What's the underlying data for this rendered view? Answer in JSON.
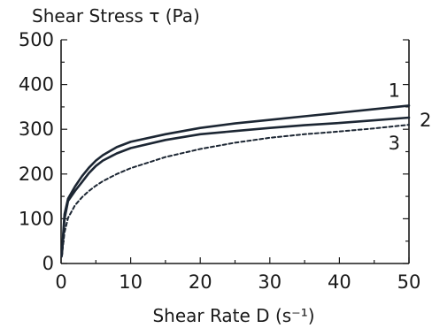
{
  "chart_data": {
    "type": "line",
    "ylabel": "Shear Stress τ (Pa)",
    "xlabel": "Shear Rate D (s⁻¹)",
    "xlim": [
      0,
      50
    ],
    "ylim": [
      0,
      500
    ],
    "xticks": [
      "0",
      "10",
      "20",
      "30",
      "40",
      "50"
    ],
    "yticks": [
      "0",
      "100",
      "200",
      "300",
      "400",
      "500"
    ],
    "grid": false,
    "series": [
      {
        "name": "1",
        "style": "solid",
        "color": "#1c2633",
        "x": [
          0.1,
          0.5,
          1,
          2,
          3,
          4,
          5,
          6,
          8,
          10,
          15,
          20,
          25,
          30,
          35,
          40,
          45,
          50
        ],
        "y": [
          20,
          110,
          145,
          172,
          195,
          214,
          230,
          242,
          260,
          272,
          289,
          303,
          313,
          321,
          329,
          337,
          345,
          353
        ]
      },
      {
        "name": "2",
        "style": "solid",
        "color": "#1c2633",
        "x": [
          0.1,
          0.5,
          1,
          2,
          3,
          4,
          5,
          6,
          8,
          10,
          15,
          20,
          25,
          30,
          35,
          40,
          45,
          50
        ],
        "y": [
          18,
          100,
          140,
          162,
          182,
          202,
          218,
          230,
          246,
          258,
          276,
          289,
          296,
          303,
          309,
          314,
          320,
          326
        ]
      },
      {
        "name": "3",
        "style": "dashed",
        "color": "#1c2633",
        "x": [
          0.1,
          0.5,
          1,
          2,
          3,
          4,
          5,
          6,
          8,
          10,
          15,
          20,
          25,
          30,
          35,
          40,
          45,
          50
        ],
        "y": [
          15,
          70,
          102,
          130,
          148,
          162,
          174,
          184,
          200,
          213,
          238,
          256,
          270,
          281,
          289,
          295,
          302,
          310
        ]
      }
    ]
  }
}
